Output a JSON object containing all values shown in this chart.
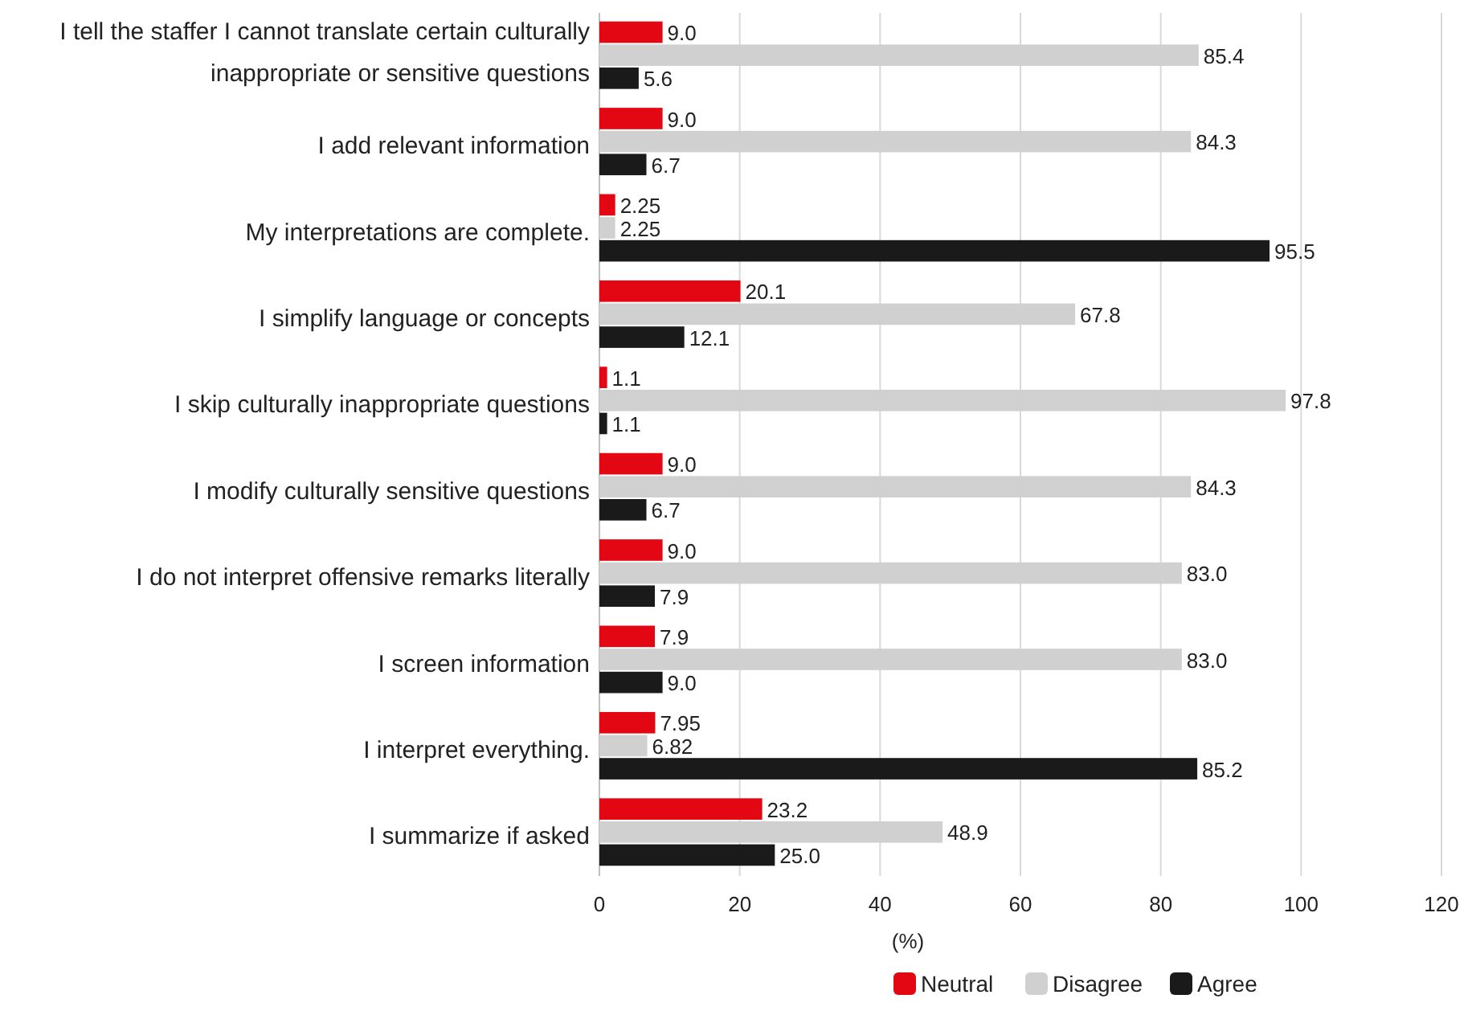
{
  "chart_data": {
    "type": "bar",
    "orientation": "horizontal",
    "xlabel": "(%)",
    "categories": [
      "I tell the staffer I cannot translate certain culturally\ninappropriate or sensitive questions",
      "I add relevant information",
      "My interpretations are complete.",
      "I simplify language or concepts",
      "I skip culturally inappropriate questions",
      "I modify culturally sensitive questions",
      "I do not interpret offensive remarks literally",
      "I screen information",
      "I interpret everything.",
      "I summarize if asked"
    ],
    "series": [
      {
        "name": "Neutral",
        "color": "#e30613",
        "values": [
          9.0,
          9.0,
          2.25,
          20.1,
          1.1,
          9.0,
          9.0,
          7.9,
          7.95,
          23.2
        ],
        "value_labels": [
          "9.0",
          "9.0",
          "2.25",
          "20.1",
          "1.1",
          "9.0",
          "9.0",
          "7.9",
          "7.95",
          "23.2"
        ]
      },
      {
        "name": "Disagree",
        "color": "#d0d0d0",
        "values": [
          85.4,
          84.3,
          2.25,
          67.8,
          97.8,
          84.3,
          83.0,
          83.0,
          6.82,
          48.9
        ],
        "value_labels": [
          "85.4",
          "84.3",
          "2.25",
          "67.8",
          "97.8",
          "84.3",
          "83.0",
          "83.0",
          "6.82",
          "48.9"
        ]
      },
      {
        "name": "Agree",
        "color": "#1a1a1a",
        "values": [
          5.6,
          6.7,
          95.5,
          12.1,
          1.1,
          6.7,
          7.9,
          9.0,
          85.2,
          25.0
        ],
        "value_labels": [
          "5.6",
          "6.7",
          "95.5",
          "12.1",
          "1.1",
          "6.7",
          "7.9",
          "9.0",
          "85.2",
          "25.0"
        ]
      }
    ],
    "xlim": [
      0,
      120
    ],
    "xticks": [
      0,
      20,
      40,
      60,
      80,
      100,
      120
    ],
    "grid": "x",
    "legend": "bottom"
  }
}
